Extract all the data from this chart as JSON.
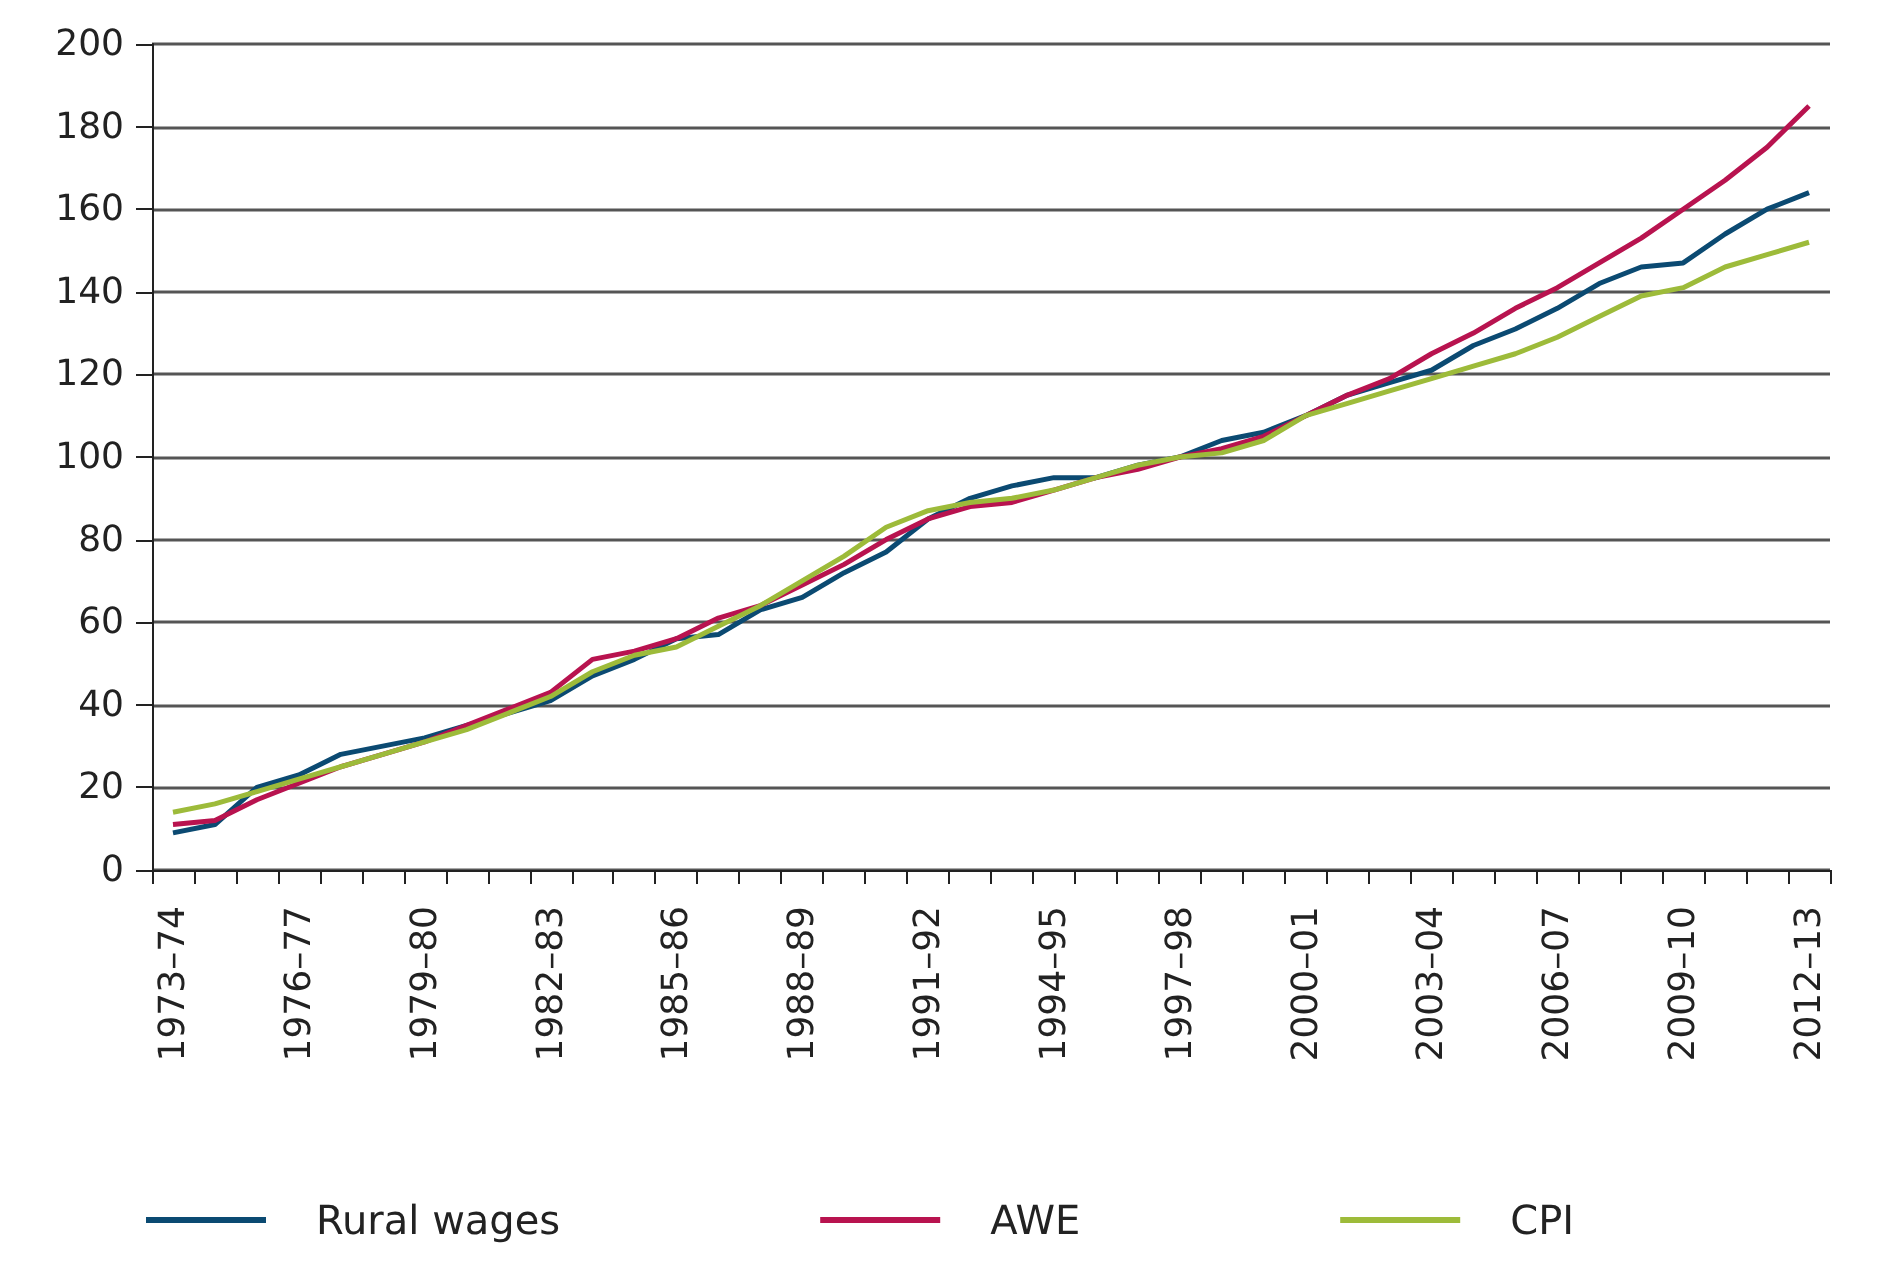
{
  "chart_data": {
    "type": "line",
    "categories": [
      "1973–74",
      null,
      null,
      "1976–77",
      null,
      null,
      "1979–80",
      null,
      null,
      "1982–83",
      null,
      null,
      "1985–86",
      null,
      null,
      "1988–89",
      null,
      null,
      "1991–92",
      null,
      null,
      "1994–95",
      null,
      null,
      "1997–98",
      null,
      null,
      "2000–01",
      null,
      null,
      "2003–04",
      null,
      null,
      "2006–07",
      null,
      null,
      "2009–10",
      null,
      null,
      "2012–13"
    ],
    "series": [
      {
        "name": "Rural wages",
        "color": "#0b4a72",
        "values": [
          9,
          11,
          20,
          23,
          28,
          30,
          32,
          35,
          38,
          41,
          47,
          51,
          56,
          57,
          63,
          66,
          72,
          77,
          85,
          90,
          93,
          95,
          95,
          98,
          100,
          104,
          106,
          110,
          115,
          118,
          121,
          127,
          131,
          136,
          142,
          146,
          147,
          154,
          160,
          164
        ]
      },
      {
        "name": "AWE",
        "color": "#b8134f",
        "values": [
          11,
          12,
          17,
          21,
          25,
          28,
          31,
          35,
          39,
          43,
          51,
          53,
          56,
          61,
          64,
          69,
          74,
          80,
          85,
          88,
          89,
          92,
          95,
          97,
          100,
          102,
          105,
          110,
          115,
          119,
          125,
          130,
          136,
          141,
          147,
          153,
          160,
          167,
          175,
          185
        ]
      },
      {
        "name": "CPI",
        "color": "#9dbb3a",
        "values": [
          14,
          16,
          19,
          22,
          25,
          28,
          31,
          34,
          38,
          42,
          48,
          52,
          54,
          59,
          64,
          70,
          76,
          83,
          87,
          89,
          90,
          92,
          95,
          98,
          100,
          101,
          104,
          110,
          113,
          116,
          119,
          122,
          125,
          129,
          134,
          139,
          141,
          146,
          149,
          152
        ]
      }
    ],
    "ylim": [
      0,
      200
    ],
    "yticks": [
      0,
      20,
      40,
      60,
      80,
      100,
      120,
      140,
      160,
      180,
      200
    ],
    "grid": "y",
    "legend": "bottom",
    "marker": "none",
    "line_style": "solid"
  }
}
